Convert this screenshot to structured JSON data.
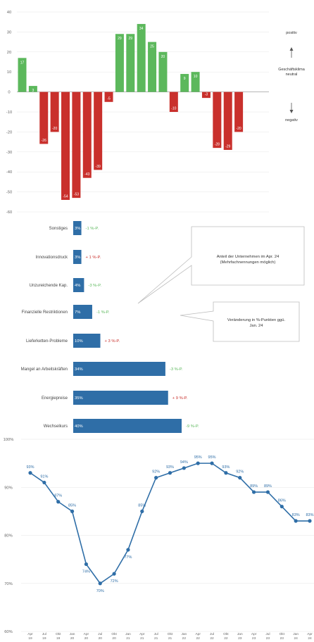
{
  "colors": {
    "positive": "#5cb85c",
    "negative": "#c9302c",
    "bar_blue": "#2f6ea7",
    "line_blue": "#2f6ea7",
    "change_up": "#c9302c",
    "change_down": "#5cb85c",
    "axis_text": "#666666",
    "grid": "#e6e6e6"
  },
  "chart_data": [
    {
      "type": "bar",
      "values": [
        17,
        3,
        -26,
        -20,
        -54,
        -53,
        -43,
        -39,
        -5,
        29,
        29,
        34,
        25,
        20,
        -10,
        9,
        10,
        -3,
        -28,
        -29,
        -20
      ],
      "data_labels": [
        "17",
        "3",
        "-26",
        "-20",
        "-54",
        "-53",
        "-43",
        "-39",
        "-5",
        "29",
        "29",
        "34",
        "25",
        "20",
        "-10",
        "9",
        "10",
        "-3",
        "-28",
        "-29",
        "-20"
      ],
      "ylim": [
        -60,
        40
      ],
      "yticks": [
        40,
        30,
        20,
        10,
        0,
        -10,
        -20,
        -30,
        -40,
        -50,
        -60
      ],
      "ytick_labels": [
        "40",
        "30",
        "20",
        "10",
        "0",
        "-10",
        "-20",
        "-30",
        "-40",
        "-50",
        "-60"
      ],
      "legend": {
        "top": "positiv",
        "middle_line1": "Geschäftsklima",
        "middle_line2": "neutral",
        "bottom": "negativ"
      }
    },
    {
      "type": "bar",
      "orientation": "horizontal",
      "categories": [
        "Sonstiges",
        "Innovationsdruck",
        "Unzureichende Kap.",
        "Finanzielle Restriktionen",
        "Lieferketten-Probleme",
        "Mangel an Arbeitskräften",
        "Energiepreise",
        "Wechselkurs"
      ],
      "values": [
        3,
        3,
        4,
        7,
        10,
        34,
        35,
        40
      ],
      "value_labels": [
        "3%",
        "3%",
        "4%",
        "7%",
        "10%",
        "34%",
        "35%",
        "40%"
      ],
      "changes": [
        -1,
        1,
        -3,
        -1,
        3,
        -3,
        9,
        -9
      ],
      "change_labels": [
        "-1 %-P.",
        "+ 1 %-P.",
        "-3 %-P.",
        "-1 %-P.",
        "+ 3 %-P.",
        "-3 %-P.",
        "+ 9 %-P.",
        "-9 %-P."
      ],
      "callouts": [
        {
          "line1": "Anteil der Unternehmen im Apr. 24",
          "line2": "(Mehrfachnennungen möglich)"
        },
        {
          "line1": "Veränderung in %-Punkten ggü.",
          "line2": "Jan. 24"
        }
      ]
    },
    {
      "type": "line",
      "x_labels": [
        [
          "Apr",
          "19"
        ],
        [
          "Jul",
          "19"
        ],
        [
          "Okt",
          "19"
        ],
        [
          "Jan",
          "20"
        ],
        [
          "Apr",
          "20"
        ],
        [
          "Jul",
          "20"
        ],
        [
          "Okt",
          "20"
        ],
        [
          "Jan",
          "21"
        ],
        [
          "Apr",
          "21"
        ],
        [
          "Jul",
          "21"
        ],
        [
          "Okt",
          "21"
        ],
        [
          "Jan",
          "22"
        ],
        [
          "Apr",
          "22"
        ],
        [
          "Jul",
          "22"
        ],
        [
          "Okt",
          "22"
        ],
        [
          "Jan",
          "23"
        ],
        [
          "Apr",
          "23"
        ],
        [
          "Jul",
          "23"
        ],
        [
          "Okt",
          "23"
        ],
        [
          "Jan",
          "24"
        ],
        [
          "Apr",
          "24"
        ]
      ],
      "values": [
        93,
        91,
        87,
        85,
        74,
        70,
        72,
        77,
        85,
        92,
        93,
        94,
        95,
        95,
        93,
        92,
        89,
        89,
        86,
        83,
        83
      ],
      "data_labels": [
        "93%",
        "91%",
        "87%",
        "85%",
        "74%",
        "70%",
        "72%",
        "77%",
        "85%",
        "92%",
        "93%",
        "94%",
        "95%",
        "95%",
        "93%",
        "92%",
        "89%",
        "89%",
        "86%",
        "83%",
        "83%"
      ],
      "ylim": [
        60,
        100
      ],
      "yticks": [
        100,
        90,
        80,
        70,
        60
      ],
      "ytick_labels": [
        "100%",
        "90%",
        "80%",
        "70%",
        "60%"
      ]
    }
  ]
}
